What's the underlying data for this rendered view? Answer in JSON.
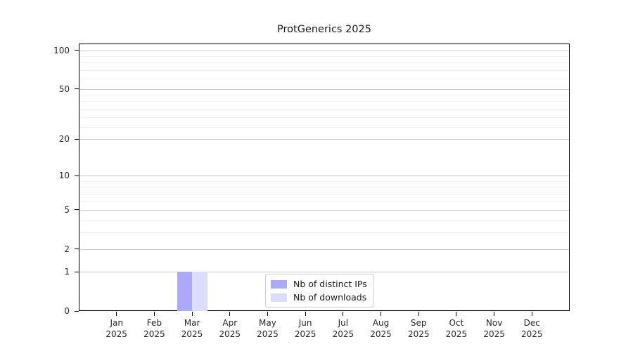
{
  "chart_data": {
    "type": "bar",
    "title": "ProtGenerics 2025",
    "categories": [
      "Jan",
      "Feb",
      "Mar",
      "Apr",
      "May",
      "Jun",
      "Jul",
      "Aug",
      "Sep",
      "Oct",
      "Nov",
      "Dec"
    ],
    "year_label": "2025",
    "series": [
      {
        "name": "Nb of distinct IPs",
        "color": "#aaaaf8",
        "values": [
          0,
          0,
          1,
          0,
          0,
          0,
          0,
          0,
          0,
          0,
          0,
          0
        ]
      },
      {
        "name": "Nb of downloads",
        "color": "#dcddfa",
        "values": [
          0,
          0,
          1,
          0,
          0,
          0,
          0,
          0,
          0,
          0,
          0,
          0
        ]
      }
    ],
    "xlabel": "",
    "ylabel": "",
    "yscale": "log1p",
    "yticks": [
      0,
      1,
      2,
      5,
      10,
      20,
      50,
      100
    ],
    "yminorticks": [
      3,
      4,
      6,
      7,
      8,
      9,
      25,
      30,
      35,
      40,
      45,
      60,
      70,
      80,
      90
    ],
    "ylim": [
      0,
      113
    ],
    "grid": "horizontal",
    "legend_position": "lower center",
    "colors": {
      "major_grid": "#c9c9c9",
      "minor_grid": "#f0f0f0",
      "spine": "#000000",
      "tick_text": "#262626"
    }
  }
}
